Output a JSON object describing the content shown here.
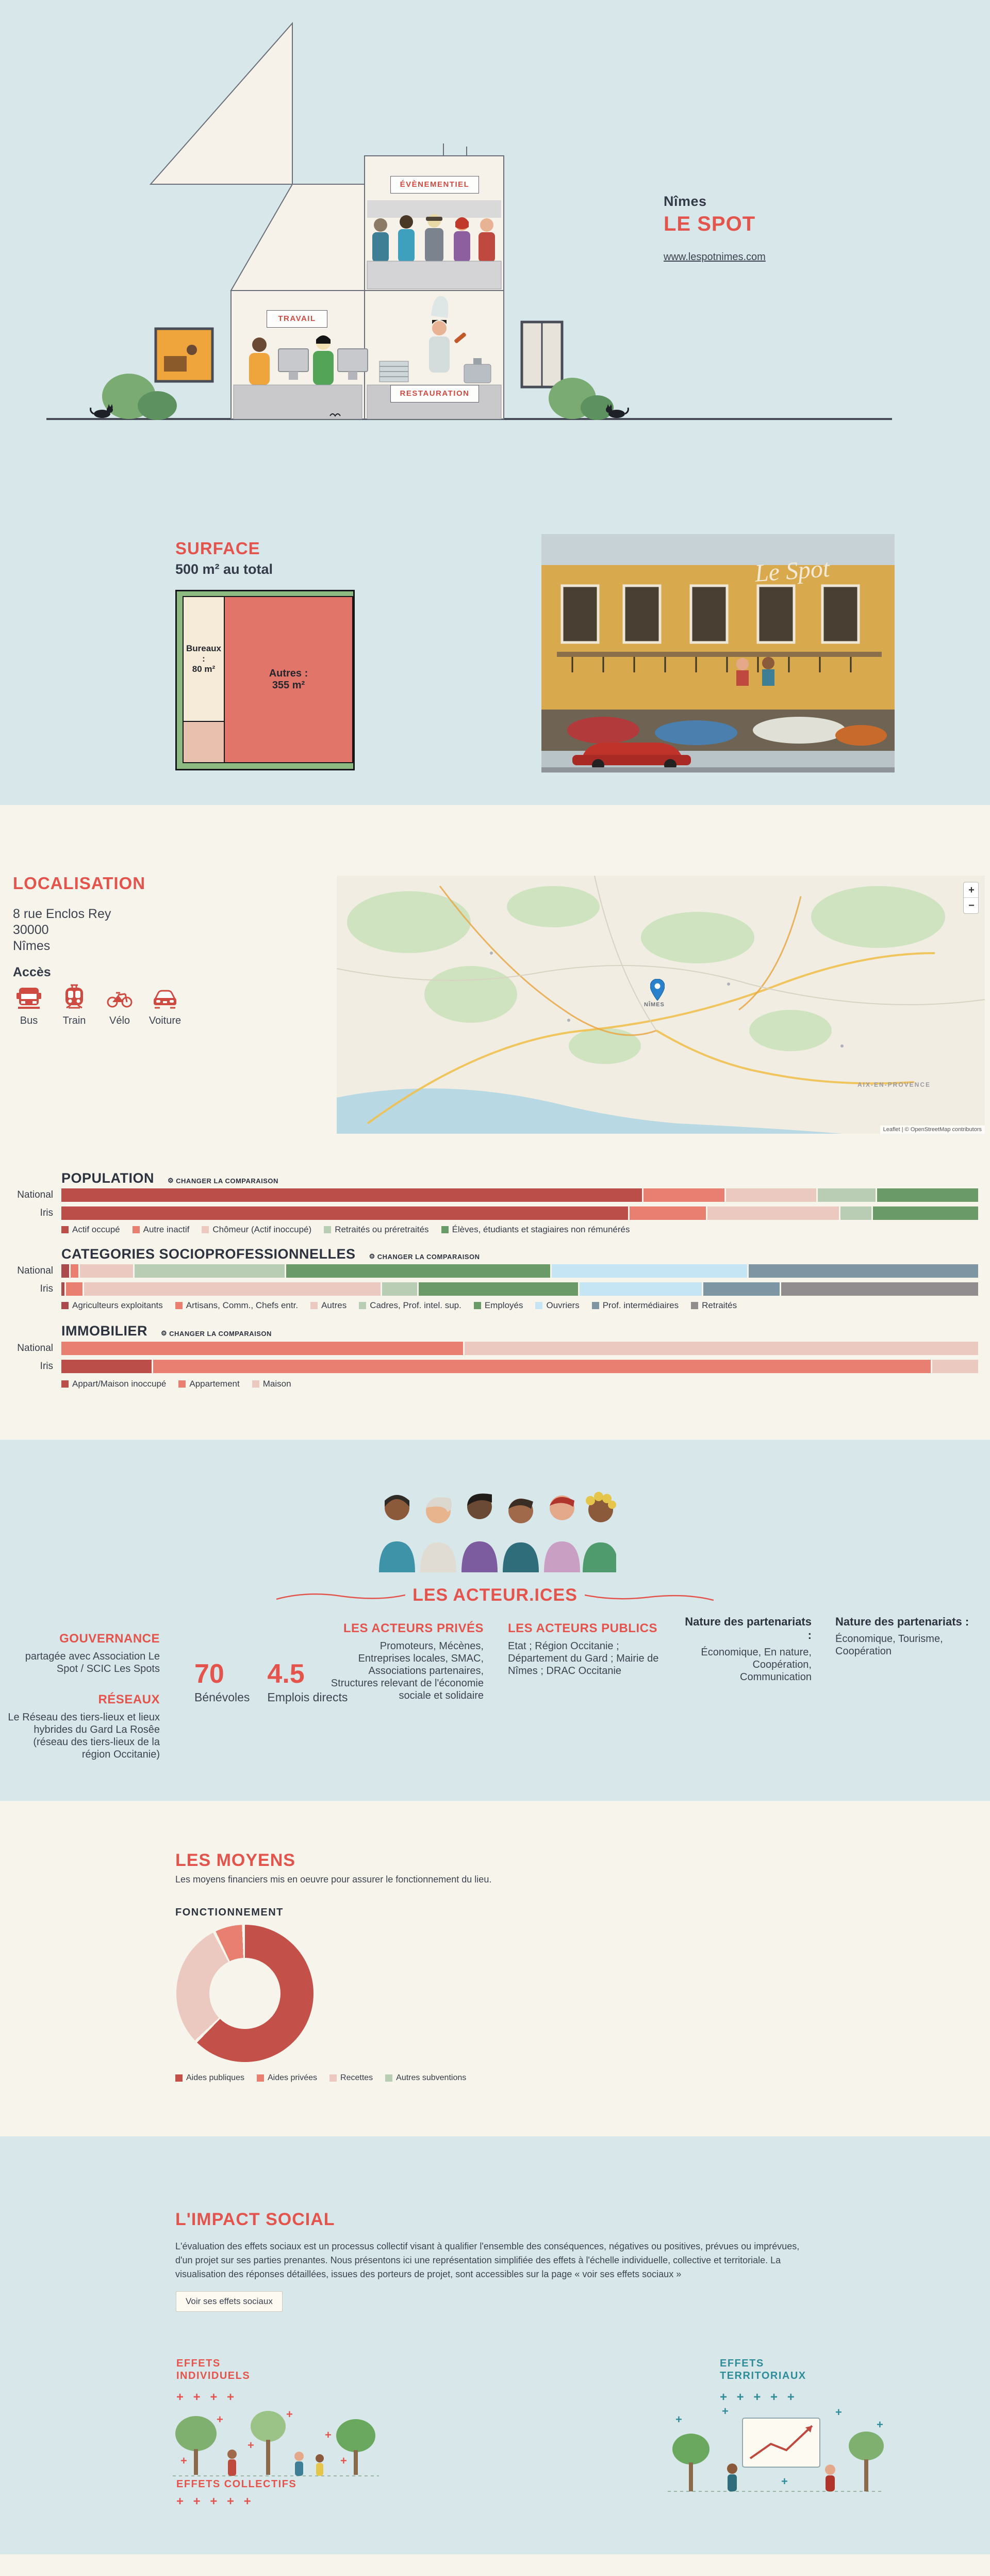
{
  "hero": {
    "city": "Nîmes",
    "name": "LE SPOT",
    "website": "www.lespotnimes.com",
    "rooms": {
      "evenementiel": "ÉVÈNEMENTIEL",
      "travail": "TRAVAIL",
      "restauration": "RESTAURATION"
    }
  },
  "surface": {
    "heading": "SURFACE",
    "total": "500 m² au total",
    "treemap": {
      "bureaux_label": "Bureaux :",
      "bureaux_value": "80 m²",
      "autres_label": "Autres :",
      "autres_value": "355 m²"
    },
    "photo_caption": "Le Spot"
  },
  "localisation": {
    "heading": "LOCALISATION",
    "address_line1": "8 rue Enclos Rey",
    "address_line2": "30000",
    "address_line3": "Nîmes",
    "acces_label": "Accès",
    "modes": [
      "Bus",
      "Train",
      "Vélo",
      "Voiture"
    ],
    "map": {
      "marker_label": "NÎMES",
      "region_label": "AIX-EN-PROVENCE",
      "attribution": "Leaflet | © OpenStreetMap contributors",
      "zoom_in": "+",
      "zoom_out": "−"
    }
  },
  "charts_ui": {
    "changer_label": "CHANGER LA COMPARAISON",
    "gear_icon": "⚙"
  },
  "chart_data": [
    {
      "id": "population",
      "type": "stacked-bar-h",
      "title": "POPULATION",
      "unit": "%",
      "categories": [
        "Actif occupé",
        "Autre inactif",
        "Chômeur (Actif inoccupé)",
        "Retraités ou préretraités",
        "Élèves, étudiants et stagiaires non rémunérés"
      ],
      "colors": [
        "#bc4e49",
        "#e87f70",
        "#ecc9c0",
        "#b8cdb4",
        "#699a67"
      ],
      "rows": [
        {
          "label": "National",
          "values": [
            63.5,
            9,
            10,
            6.5,
            11
          ]
        },
        {
          "label": "Iris",
          "values": [
            62,
            8.5,
            14.5,
            3.5,
            11.5
          ]
        }
      ]
    },
    {
      "id": "csp",
      "type": "stacked-bar-h",
      "title": "CATEGORIES SOCIOPROFESSIONNELLES",
      "unit": "%",
      "categories": [
        "Agriculteurs exploitants",
        "Artisans, Comm., Chefs entr.",
        "Autres",
        "Cadres, Prof. intel. sup.",
        "Employés",
        "Ouvriers",
        "Prof. intermédiaires",
        "Retraités"
      ],
      "colors": [
        "#ab4a4c",
        "#e87f70",
        "#ecc9c0",
        "#b8cdb4",
        "#699a67",
        "#c5e4f4",
        "#7e96a4",
        "#918d8f"
      ],
      "rows": [
        {
          "label": "National",
          "values": [
            1,
            1,
            6,
            16.5,
            29,
            21.5,
            25,
            0
          ]
        },
        {
          "label": "Iris",
          "values": [
            0.5,
            2,
            32.5,
            4,
            17.5,
            13.5,
            8.5,
            21.5
          ]
        }
      ]
    },
    {
      "id": "immobilier",
      "type": "stacked-bar-h",
      "title": "IMMOBILIER",
      "unit": "%",
      "categories": [
        "Appart/Maison inoccupé",
        "Appartement",
        "Maison"
      ],
      "colors": [
        "#bc4e49",
        "#e87f70",
        "#ecc9c0"
      ],
      "rows": [
        {
          "label": "National",
          "values": [
            0,
            44,
            56
          ]
        },
        {
          "label": "Iris",
          "values": [
            10,
            85,
            5
          ]
        }
      ]
    },
    {
      "id": "fonctionnement",
      "type": "donut",
      "title": "FONCTIONNEMENT",
      "unit": "%",
      "slices": [
        {
          "label": "Aides publiques",
          "value": 63,
          "color": "#c4504a"
        },
        {
          "label": "Recettes",
          "value": 30,
          "color": "#ecc9c0"
        },
        {
          "label": "Aides privées",
          "value": 7,
          "color": "#e87f70"
        },
        {
          "label": "Autres subventions",
          "value": 0,
          "color": "#b8cdb4"
        }
      ],
      "legend_order": [
        0,
        2,
        1,
        3
      ]
    },
    {
      "id": "surface-treemap",
      "type": "treemap",
      "title": "SURFACE",
      "total": 500,
      "cells": [
        {
          "label": "Bureaux",
          "value": 80
        },
        {
          "label": "Autres",
          "value": 355
        },
        {
          "label": "",
          "value": 65
        }
      ]
    }
  ],
  "acteurs": {
    "heading": "LES ACTEUR.ICES",
    "gouvernance_title": "GOUVERNANCE",
    "gouvernance_text": "partagée avec Association Le Spot / SCIC Les Spots",
    "reseaux_title": "RÉSEAUX",
    "reseaux_text": "Le Réseau des tiers-lieux et lieux hybrides du Gard La Rosêe (réseau des tiers-lieux de la région Occitanie)",
    "stats": [
      {
        "value": "70",
        "label": "Bénévoles"
      },
      {
        "value": "4.5",
        "label": "Emplois directs"
      }
    ],
    "prives_title": "LES ACTEURS PRIVÉS",
    "prives_text": "Promoteurs, Mécènes, Entreprises locales, SMAC, Associations partenaires, Structures relevant de l'économie sociale et solidaire",
    "publics_title": "LES ACTEURS PUBLICS",
    "publics_text": "Etat ; Région Occitanie ; Département du Gard ; Mairie de Nîmes ; DRAC Occitanie",
    "partenariats": [
      {
        "title": "Nature des partenariats :",
        "text": "Économique, En nature, Coopération, Communication"
      },
      {
        "title": "Nature des partenariats :",
        "text": "Économique, Tourisme, Coopération"
      }
    ]
  },
  "moyens": {
    "heading": "LES MOYENS",
    "subtitle": "Les moyens financiers mis en oeuvre pour assurer le fonctionnement du lieu."
  },
  "impact": {
    "heading": "L'IMPACT SOCIAL",
    "paragraph": "L'évaluation des effets sociaux est un processus collectif visant à qualifier l'ensemble des conséquences, négatives ou positives, prévues ou imprévues, d'un projet sur ses parties prenantes. Nous présentons ici une représentation simplifiée des effets à l'échelle individuelle, collective et territoriale. La visualisation des réponses détaillées, issues des porteurs de projet, sont accessibles sur la page « voir ses effets sociaux »",
    "button": "Voir ses effets sociaux",
    "effets_individuels": "EFFETS\nINDIVIDUELS",
    "effets_individuels_plus": "+ + + +",
    "effets_collectifs": "EFFETS COLLECTIFS",
    "effets_collectifs_plus": "+ + + + +",
    "effets_territoriaux": "EFFETS\nTERRITORIAUX",
    "effets_territoriaux_plus": "+ + + + +"
  }
}
